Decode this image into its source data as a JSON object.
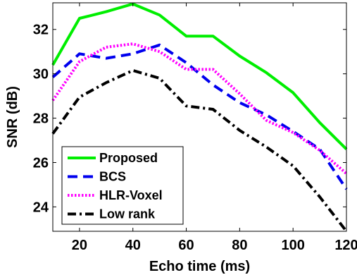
{
  "chart_data": {
    "type": "line",
    "xlabel": "Echo time (ms)",
    "ylabel": "SNR (dB)",
    "xlim": [
      10,
      120
    ],
    "ylim": [
      22.9,
      33.2
    ],
    "xticks": [
      20,
      40,
      60,
      80,
      100,
      120
    ],
    "yticks": [
      24,
      26,
      28,
      30,
      32
    ],
    "x": [
      10,
      20,
      30,
      40,
      50,
      60,
      70,
      80,
      90,
      100,
      110,
      120
    ],
    "legend_position": "bottom-left",
    "grid": false,
    "series": [
      {
        "name": "Proposed",
        "color": "#00ee00",
        "dash": "solid",
        "values": [
          30.4,
          32.5,
          32.8,
          33.15,
          32.65,
          31.7,
          31.7,
          30.8,
          30.05,
          29.15,
          27.8,
          26.6
        ]
      },
      {
        "name": "BCS",
        "color": "#0000ee",
        "dash": "dashed",
        "values": [
          29.85,
          30.9,
          30.7,
          30.9,
          31.3,
          30.5,
          29.5,
          28.7,
          28.15,
          27.4,
          26.6,
          24.8
        ]
      },
      {
        "name": "HLR-Voxel",
        "color": "#ff00ff",
        "dash": "dotted",
        "values": [
          28.8,
          30.55,
          31.2,
          31.35,
          31.0,
          30.2,
          30.2,
          29.1,
          27.9,
          27.35,
          26.55,
          25.5
        ]
      },
      {
        "name": "Low rank",
        "color": "#000000",
        "dash": "dashdot",
        "values": [
          27.3,
          28.95,
          29.6,
          30.15,
          29.8,
          28.55,
          28.4,
          27.45,
          26.7,
          25.85,
          24.45,
          22.9
        ]
      }
    ]
  }
}
